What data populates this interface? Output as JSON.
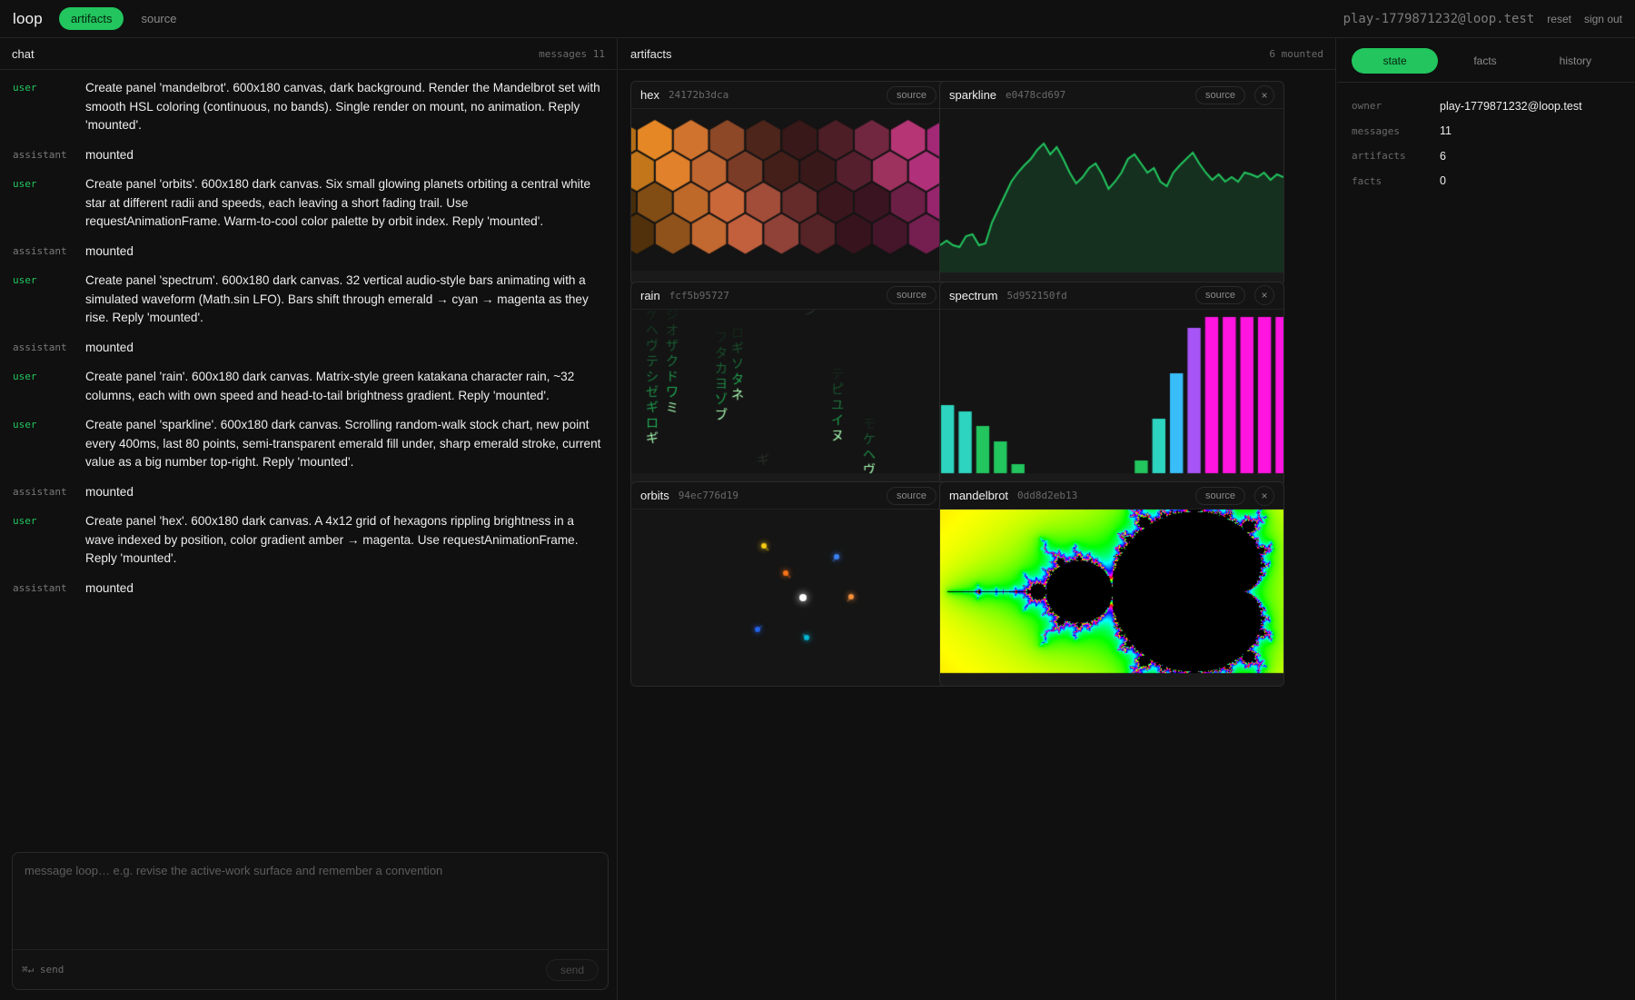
{
  "app": {
    "title": "loop",
    "user": "play-1779871232@loop.test",
    "reset": "reset",
    "sign_out": "sign out"
  },
  "nav": {
    "tabs": [
      {
        "label": "artifacts",
        "active": true
      },
      {
        "label": "source",
        "active": false
      }
    ]
  },
  "chat": {
    "title": "chat",
    "count": "messages 11",
    "messages": [
      {
        "role": "user",
        "text": "Create panel 'mandelbrot'. 600x180 canvas, dark background. Render the Mandelbrot set with smooth HSL coloring (continuous, no bands). Single render on mount, no animation. Reply 'mounted'."
      },
      {
        "role": "assistant",
        "text": "mounted"
      },
      {
        "role": "user",
        "text": "Create panel 'orbits'. 600x180 dark canvas. Six small glowing planets orbiting a central white star at different radii and speeds, each leaving a short fading trail. Use requestAnimationFrame. Warm-to-cool color palette by orbit index. Reply 'mounted'."
      },
      {
        "role": "assistant",
        "text": "mounted"
      },
      {
        "role": "user",
        "text": "Create panel 'spectrum'. 600x180 dark canvas. 32 vertical audio-style bars animating with a simulated waveform (Math.sin LFO). Bars shift through emerald → cyan → magenta as they rise. Reply 'mounted'."
      },
      {
        "role": "assistant",
        "text": "mounted"
      },
      {
        "role": "user",
        "text": "Create panel 'rain'. 600x180 dark canvas. Matrix-style green katakana character rain, ~32 columns, each with own speed and head-to-tail brightness gradient. Reply 'mounted'."
      },
      {
        "role": "user",
        "text": "Create panel 'sparkline'. 600x180 dark canvas. Scrolling random-walk stock chart, new point every 400ms, last 80 points, semi-transparent emerald fill under, sharp emerald stroke, current value as a big number top-right. Reply 'mounted'."
      },
      {
        "role": "assistant",
        "text": "mounted"
      },
      {
        "role": "user",
        "text": "Create panel 'hex'. 600x180 dark canvas. A 4x12 grid of hexagons rippling brightness in a wave indexed by position, color gradient amber → magenta. Use requestAnimationFrame. Reply 'mounted'."
      },
      {
        "role": "assistant",
        "text": "mounted"
      }
    ],
    "composer": {
      "placeholder": "message loop… e.g. revise the active-work surface and remember a convention",
      "hint": "⌘↵ send",
      "send": "send"
    }
  },
  "artifacts": {
    "title": "artifacts",
    "count": "6 mounted",
    "source_label": "source",
    "close_label": "×",
    "panels": [
      {
        "name": "hex",
        "hash": "24172b3dca"
      },
      {
        "name": "sparkline",
        "hash": "e0478cd697"
      },
      {
        "name": "rain",
        "hash": "fcf5b95727"
      },
      {
        "name": "spectrum",
        "hash": "5d952150fd"
      },
      {
        "name": "orbits",
        "hash": "94ec776d19"
      },
      {
        "name": "mandelbrot",
        "hash": "0dd8d2eb13"
      }
    ]
  },
  "state": {
    "tabs": [
      {
        "label": "state",
        "active": true
      },
      {
        "label": "facts",
        "active": false
      },
      {
        "label": "history",
        "active": false
      }
    ],
    "rows": [
      {
        "key": "owner",
        "value": "play-1779871232@loop.test"
      },
      {
        "key": "messages",
        "value": "11"
      },
      {
        "key": "artifacts",
        "value": "6"
      },
      {
        "key": "facts",
        "value": "0"
      }
    ]
  },
  "colors": {
    "accent": "#22c55e",
    "background": "#101010",
    "panel": "#141414",
    "border": "#2a2a2a"
  },
  "icons": {
    "close": "close-icon"
  }
}
